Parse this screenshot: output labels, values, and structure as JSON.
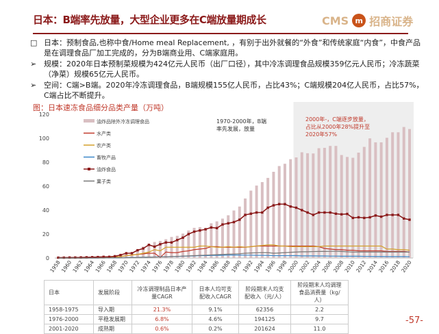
{
  "title": "日本：B端率先放量，大型企业更多在C端放量期成长",
  "logo": {
    "text": "CMS",
    "mark": "m",
    "name": "招商证券"
  },
  "bullets": [
    {
      "marker": "□",
      "text": "日本：预制食品,也称中食/Home meal Replacement, ，有别于出外就餐的“外食”和传统家庭“内食”，中食产品是在调理食品厂加工完成的，分为B端商业用、C端家庭用。"
    },
    {
      "marker": "➢",
      "text": "规模：2020年日本预制菜规模为424亿元人民币（出厂口径），其中冷冻调理食品规模359亿元人民币；冷冻蔬菜（净菜）规模65亿元人民币。"
    },
    {
      "marker": "➢",
      "text": "空间：C端>B端。2020年冷冻调理食品，B端规模155亿人民币，占比43%；C端规模204亿人民币，占比57%，C端占比不断提升。"
    }
  ],
  "chart_caption": "图：日本速冻食品细分品类产量（万吨）",
  "chart_data": {
    "type": "bar+line",
    "x": [
      1958,
      1959,
      1960,
      1961,
      1962,
      1963,
      1964,
      1965,
      1966,
      1967,
      1968,
      1969,
      1970,
      1971,
      1972,
      1973,
      1974,
      1975,
      1976,
      1977,
      1978,
      1979,
      1980,
      1981,
      1982,
      1983,
      1984,
      1985,
      1986,
      1987,
      1988,
      1989,
      1990,
      1991,
      1992,
      1993,
      1994,
      1995,
      1996,
      1997,
      1998,
      1999,
      2000,
      2001,
      2002,
      2003,
      2004,
      2005,
      2006,
      2007,
      2008,
      2009,
      2010,
      2011,
      2012,
      2013,
      2014,
      2015,
      2016,
      2017,
      2018,
      2019,
      2020
    ],
    "x_tick_labels": [
      "1958",
      "1960",
      "1962",
      "1964",
      "1966",
      "1968",
      "1970",
      "1972",
      "1974",
      "1976",
      "1978",
      "1980",
      "1982",
      "1984",
      "1986",
      "1988",
      "1990",
      "1992",
      "1994",
      "1996",
      "1998",
      "2000",
      "2002",
      "2004",
      "2006",
      "2008",
      "2010",
      "2012",
      "2014",
      "2016",
      "2018",
      "2020"
    ],
    "ylim": [
      0,
      120
    ],
    "y_ticks": [
      0,
      20,
      40,
      60,
      80,
      100,
      120
    ],
    "legend_position": "top-left",
    "series": [
      {
        "name": "油炸品除外冷冻调理食品",
        "kind": "bar",
        "color": "#d9bfc2",
        "values": [
          0.2,
          0.2,
          0.3,
          0.3,
          0.4,
          0.5,
          0.6,
          0.8,
          1,
          1.5,
          2,
          3,
          4,
          5,
          7,
          9.5,
          11.5,
          13.4,
          14.3,
          15.7,
          17.6,
          18.5,
          20.4,
          23,
          25.2,
          25.8,
          25.2,
          29,
          30.6,
          32.9,
          35.7,
          39.7,
          43,
          49.7,
          56.3,
          60.5,
          63.4,
          66.9,
          72,
          76.8,
          78.7,
          82.5,
          84,
          88.3,
          87.5,
          87.3,
          91.7,
          92,
          93.6,
          93.6,
          86,
          84.4,
          83.7,
          88,
          92.8,
          99.9,
          96.6,
          96.6,
          100.4,
          105,
          105,
          109.4,
          107.7
        ]
      },
      {
        "name": "水产类",
        "kind": "line",
        "color": "#c0392b",
        "values": [
          0,
          0,
          0,
          0,
          0,
          0,
          0.1,
          0.2,
          0.3,
          0.5,
          0.8,
          1.2,
          2,
          2.5,
          3,
          3.5,
          4,
          4,
          0.5,
          5,
          4.5,
          4.5,
          5.5,
          6,
          7,
          7.5,
          8,
          9.5,
          9.5,
          9,
          9,
          9,
          9,
          9,
          9.5,
          10,
          10,
          10,
          10,
          10,
          10,
          10,
          10,
          10,
          10,
          10,
          9.5,
          8,
          7.5,
          7,
          7,
          6.5,
          6.5,
          6,
          6,
          6,
          6,
          6,
          5.5,
          5.5,
          5.5,
          5.5,
          5
        ]
      },
      {
        "name": "农产类",
        "kind": "line",
        "color": "#d4a02a",
        "values": [
          0,
          0,
          0,
          0,
          0,
          0,
          0.1,
          0.2,
          0.3,
          0.5,
          0.8,
          1.2,
          2,
          2.5,
          3,
          4,
          5,
          7,
          6,
          9,
          9,
          9,
          9,
          9,
          9,
          10,
          10,
          9.5,
          9,
          9,
          9.5,
          9,
          9.5,
          9,
          9.5,
          10,
          10.5,
          11,
          11,
          10,
          10,
          9.5,
          9.5,
          9.5,
          9.5,
          9.5,
          9.5,
          10,
          10,
          10,
          10,
          10,
          10,
          10,
          10,
          10,
          10,
          10,
          7.5,
          7.5,
          7,
          7,
          6.5
        ]
      },
      {
        "name": "畜牧产品",
        "kind": "line",
        "color": "#3a86c8",
        "values": [
          0,
          0,
          0,
          0,
          0,
          0,
          0,
          0,
          0.1,
          0.1,
          0.2,
          0.3,
          0.4,
          0.5,
          0.6,
          0.7,
          0.8,
          0.9,
          1,
          1,
          1.2,
          1.3,
          1.5,
          1.6,
          1.8,
          2,
          2,
          2.2,
          2.2,
          2.3,
          2.4,
          2.5,
          2.5,
          2.4,
          2.4,
          2.3,
          2.3,
          2.2,
          2,
          2,
          2,
          2,
          2,
          1.8,
          1.8,
          1.8,
          1.7,
          1.7,
          1.6,
          1.6,
          1.5,
          1.5,
          1.5,
          1.5,
          1.4,
          1.4,
          1.3,
          1.3,
          1.2,
          1.2,
          1.2,
          1.2,
          1.1
        ]
      },
      {
        "name": "油炸食品",
        "kind": "line-marker",
        "color": "#8b1a1a",
        "values": [
          0.3,
          0.3,
          0.4,
          0.4,
          0.5,
          0.6,
          0.7,
          0.8,
          1,
          1,
          1.5,
          2.5,
          4,
          4,
          6.5,
          8,
          11,
          9.5,
          11.5,
          13,
          13,
          15,
          17,
          20,
          22,
          23,
          24,
          25.5,
          25,
          28,
          29,
          30,
          32,
          36,
          37,
          38,
          38,
          42,
          44,
          45,
          45,
          43,
          42,
          40,
          38,
          36,
          38,
          38,
          38,
          37,
          36.5,
          36.8,
          33.5,
          34,
          33.5,
          34,
          35.5,
          34.5,
          36,
          36,
          36,
          33,
          32
        ]
      },
      {
        "name": "菓子类",
        "kind": "line",
        "color": "#777777",
        "values": [
          0,
          0,
          0,
          0,
          0,
          0,
          0,
          0,
          0,
          0.1,
          0.1,
          0.2,
          0.3,
          0.4,
          0.5,
          0.6,
          0.7,
          0.8,
          0.9,
          1,
          1.2,
          1.4,
          1.6,
          1.8,
          2,
          2.2,
          2.4,
          2.6,
          2.8,
          3,
          3.2,
          3.4,
          3.6,
          4,
          4.2,
          4.4,
          4.5,
          4.5,
          4,
          4.2,
          4.5,
          4.8,
          5,
          5.2,
          5.2,
          5.4,
          5.5,
          5.5,
          5.6,
          5.6,
          5.5,
          5.2,
          5,
          5,
          5,
          5,
          5,
          5,
          5,
          5,
          5,
          5,
          5
        ]
      }
    ],
    "annotations": [
      {
        "text": "1970-2000年，B端率先发展，放量",
        "color": "#333333"
      },
      {
        "text": "2000年-，C端逐步放量，占比从2000年28%提升至2020年57%",
        "color": "#c0392b"
      }
    ],
    "shaded_region": {
      "from": 2000,
      "to": 2020,
      "color": "#eeeeee"
    }
  },
  "table": {
    "header": [
      "日本",
      "发展阶段",
      "冷冻调理制品日本产量CAGR",
      "日本人均可支配收入CAGR",
      "阶段期末人均支配收入（元/人）",
      "阶段期末人均调理食品消费量（kg/人）"
    ],
    "rows": [
      [
        "1958-1975",
        "导入期",
        "21.3%",
        "9.1%",
        "62356",
        "2.2"
      ],
      [
        "1976-2000",
        "平稳发展期",
        "6.8%",
        "4.6%",
        "194125",
        "9.7"
      ],
      [
        "2001-2020",
        "成熟期",
        "0.6%",
        "0.2%",
        "201624",
        "11.0"
      ]
    ]
  },
  "page_number": "-57-"
}
